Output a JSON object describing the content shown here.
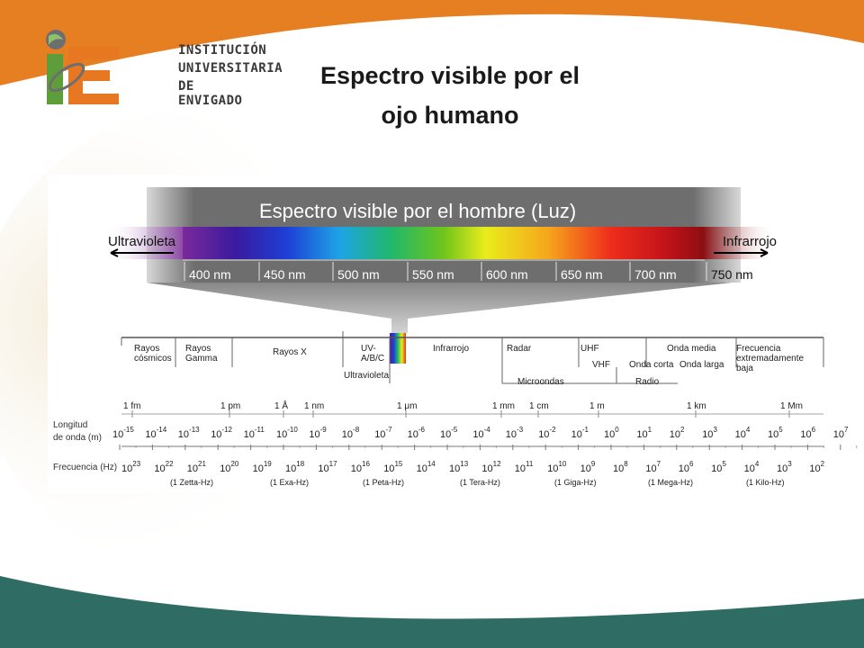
{
  "logo": {
    "lines": [
      "INSTITUCIÓN",
      "UNIVERSITARIA",
      "DE  ENVIGADO"
    ],
    "brand_colors": {
      "green": "#5e9e3a",
      "orange": "#e87722",
      "gray": "#6d6e70"
    }
  },
  "slide": {
    "title_line1": "Espectro visible por el",
    "title_line2": "ojo humano"
  },
  "theme": {
    "orange_band": "#e67e22",
    "teal_band": "#2c6e66",
    "cream": "#f6efe1"
  },
  "spectrum": {
    "banner": "Espectro visible por el hombre (Luz)",
    "left_label": "Ultravioleta",
    "right_label": "Infrarrojo",
    "nm_labels": [
      "400 nm",
      "450 nm",
      "500 nm",
      "550 nm",
      "600 nm",
      "650 nm",
      "700 nm",
      "750 nm"
    ]
  },
  "regions": [
    {
      "id": "cosmicos",
      "lines": [
        "Rayos",
        "cósmicos"
      ]
    },
    {
      "id": "gamma",
      "lines": [
        "Rayos",
        "Gamma"
      ]
    },
    {
      "id": "rayos-x",
      "lines": [
        "Rayos X"
      ]
    },
    {
      "id": "uv",
      "lines": [
        "UV-",
        "A/B/C"
      ]
    },
    {
      "id": "ultravioleta",
      "lines": [
        "Ultravioleta"
      ]
    },
    {
      "id": "infrarrojo",
      "lines": [
        "Infrarrojo"
      ]
    },
    {
      "id": "radar",
      "lines": [
        "Radar"
      ]
    },
    {
      "id": "microondas",
      "lines": [
        "Microondas"
      ]
    },
    {
      "id": "uhf",
      "lines": [
        "UHF"
      ]
    },
    {
      "id": "vhf",
      "lines": [
        "VHF"
      ]
    },
    {
      "id": "onda-corta",
      "lines": [
        "Onda corta"
      ]
    },
    {
      "id": "onda-media",
      "lines": [
        "Onda media"
      ]
    },
    {
      "id": "onda-larga",
      "lines": [
        "Onda larga"
      ]
    },
    {
      "id": "radio",
      "lines": [
        "Radio"
      ]
    },
    {
      "id": "baja",
      "lines": [
        "Frecuencia",
        "extremadamente",
        "baja"
      ]
    }
  ],
  "units": [
    "1 fm",
    "1 pm",
    "1 Å",
    "1 nm",
    "1 μm",
    "1 mm",
    "1 cm",
    "1 m",
    "1 km",
    "1 Mm"
  ],
  "wavelength": {
    "label_line1": "Longitud",
    "label_line2": "de onda (m)",
    "exponents": [
      "-15",
      "-14",
      "-13",
      "-12",
      "-11",
      "-10",
      "-9",
      "-8",
      "-7",
      "-6",
      "-5",
      "-4",
      "-3",
      "-2",
      "-1",
      "0",
      "1",
      "2",
      "3",
      "4",
      "5",
      "6",
      "7"
    ]
  },
  "frequency": {
    "label": "Frecuencia (Hz)",
    "exponents": [
      "23",
      "22",
      "21",
      "20",
      "19",
      "18",
      "17",
      "16",
      "15",
      "14",
      "13",
      "12",
      "11",
      "10",
      "9",
      "8",
      "7",
      "6",
      "5",
      "4",
      "3",
      "2"
    ],
    "named": [
      "(1 Zetta-Hz)",
      "(1 Exa-Hz)",
      "(1 Peta-Hz)",
      "(1 Tera-Hz)",
      "(1 Giga-Hz)",
      "(1 Mega-Hz)",
      "(1 Kilo-Hz)"
    ]
  }
}
